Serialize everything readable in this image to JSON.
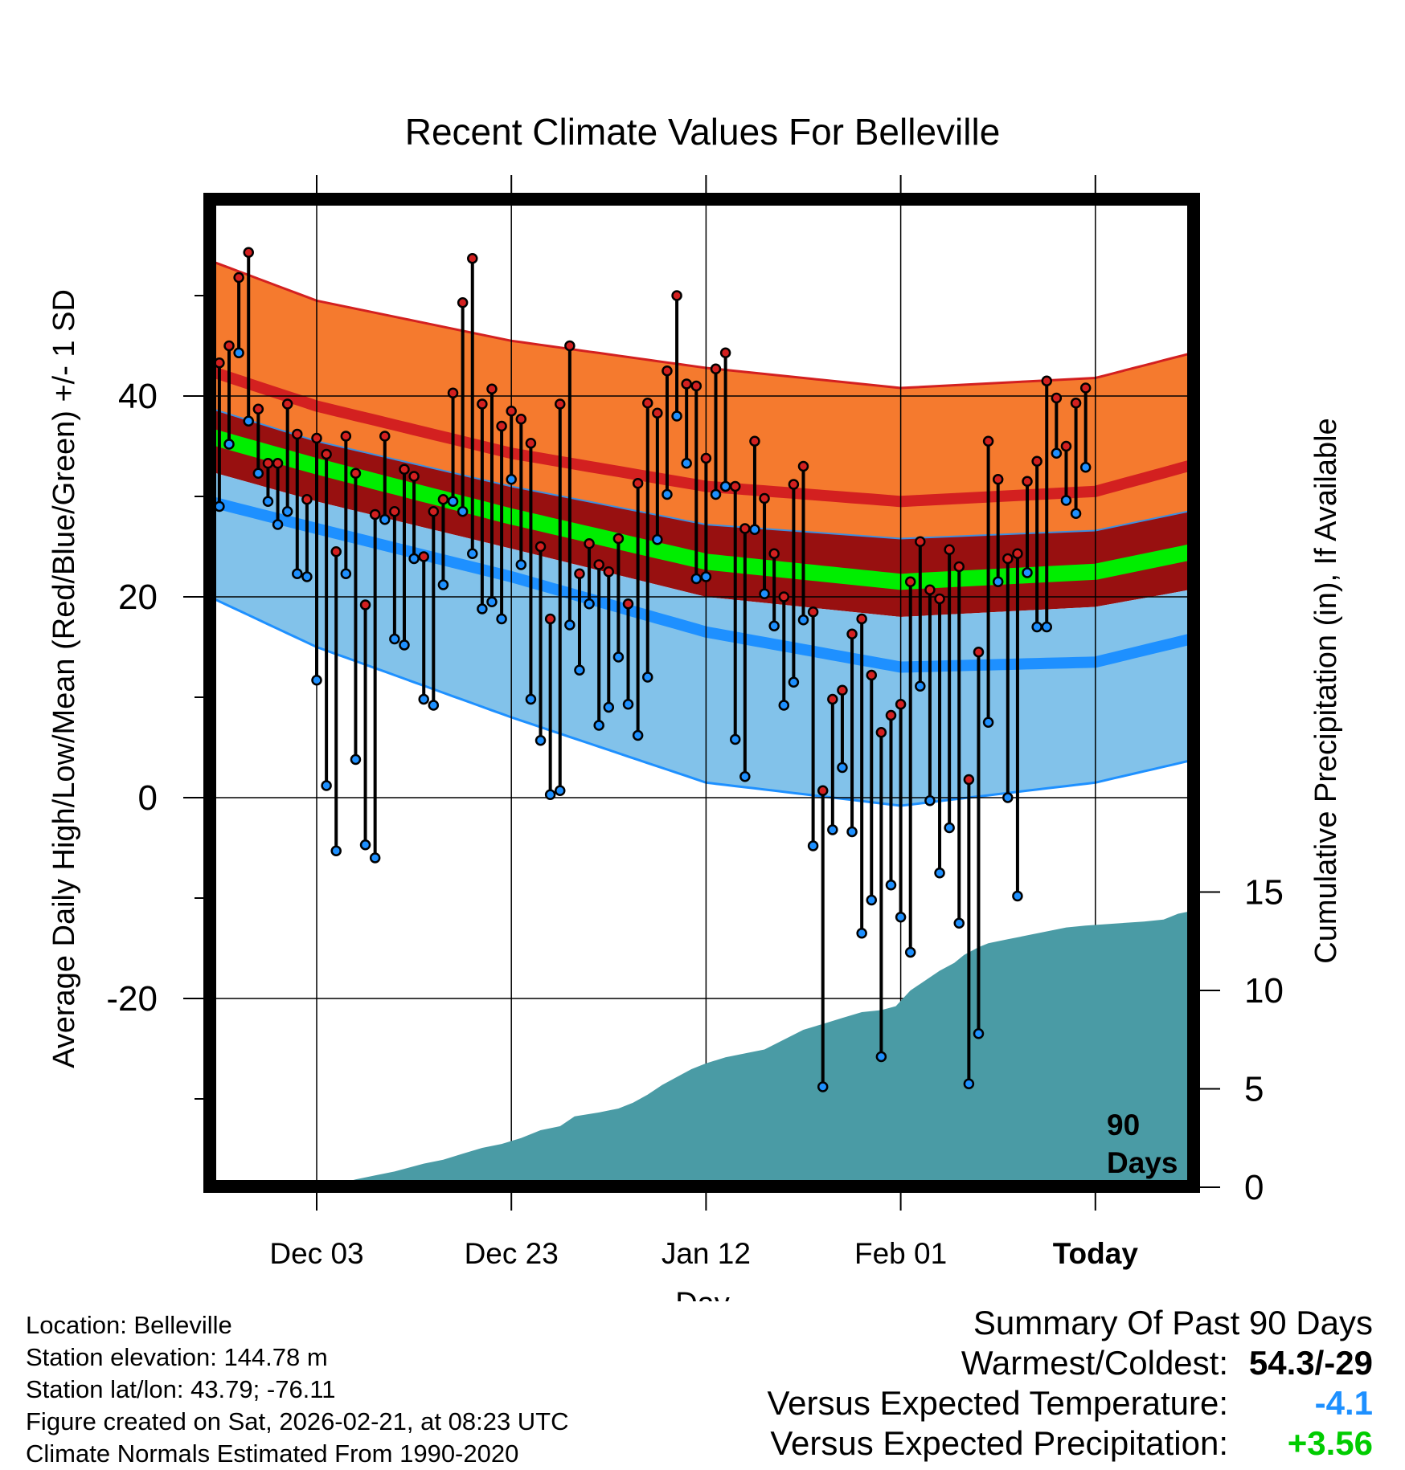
{
  "chart_data": {
    "type": "line",
    "title": "Recent Climate Values For Belleville",
    "xlabel": "Day",
    "ylabel_left": "Average Daily High/Low/Mean (Red/Blue/Green) +/- 1 SD",
    "ylabel_right": "Cumulative Precipitation (in), If Available",
    "x_tick_labels": [
      "Dec 03",
      "Dec 23",
      "Jan 12",
      "Feb 01",
      "Today"
    ],
    "y_left_ticks": [
      "40",
      "20",
      "0",
      "-20"
    ],
    "y_right_ticks": [
      "15",
      "10",
      "5",
      "0"
    ],
    "ylim_left": [
      -39,
      59
    ],
    "ylim_right": [
      0,
      29.5
    ],
    "today_marker": {
      "day_index": 90,
      "label_line1": "90",
      "label_line2": "Days"
    },
    "series_colors": {
      "high": "#d32020",
      "low": "#1e90ff",
      "mean": "#00ee00",
      "precip": "#4a9ba5",
      "high_band": "#f57a2e",
      "mid_band": "#981010",
      "low_band": "#82c2ea"
    },
    "normals": {
      "days": [
        -11,
        0,
        20,
        40,
        60,
        80,
        100
      ],
      "high_sd_upper": [
        53.5,
        49.5,
        45.5,
        42.8,
        40.8,
        41.8,
        46.8
      ],
      "high_mean": [
        42.5,
        39.0,
        34.3,
        31.0,
        29.5,
        30.5,
        35.8
      ],
      "mid_upper": [
        38.8,
        35.5,
        31.0,
        27.2,
        25.8,
        26.6,
        30.6
      ],
      "mean": [
        36.0,
        33.0,
        28.0,
        23.5,
        21.5,
        22.5,
        26.5
      ],
      "mid_lower": [
        32.5,
        29.5,
        24.8,
        20.0,
        18.0,
        19.0,
        22.5
      ],
      "low_mean": [
        29.5,
        26.8,
        22.0,
        16.5,
        13.0,
        13.5,
        18.2
      ],
      "low_sd_lower": [
        20.0,
        15.0,
        8.0,
        1.5,
        -0.8,
        1.5,
        6.0
      ]
    },
    "highs": [
      43.3,
      45,
      51.8,
      54.3,
      38.7,
      33.3,
      33.3,
      39.2,
      36.2,
      29.7,
      35.8,
      34.2,
      24.5,
      36,
      32.3,
      19.2,
      28.2,
      36,
      28.5,
      32.7,
      32,
      24,
      28.5,
      29.7,
      40.3,
      49.3,
      53.7,
      39.2,
      40.7,
      37,
      38.5,
      37.7,
      35.3,
      25,
      17.8,
      39.2,
      45,
      22.3,
      25.3,
      23.2,
      22.5,
      25.8,
      19.3,
      31.3,
      39.3,
      38.3,
      42.5,
      50,
      41.2,
      41,
      33.8,
      42.7,
      44.3,
      31,
      26.8,
      35.5,
      29.8,
      24.3,
      20,
      31.2,
      33,
      18.5,
      0.7,
      9.8,
      10.7,
      16.3,
      17.8,
      12.2,
      6.5,
      8.2,
      9.3,
      21.5,
      25.5,
      20.7,
      19.8,
      24.7,
      23,
      1.8,
      14.5,
      35.5,
      31.7,
      23.8,
      24.3,
      31.5,
      33.5,
      41.5,
      39.8,
      35,
      39.3,
      40.8
    ],
    "lows": [
      29,
      35.2,
      44.3,
      37.5,
      32.3,
      29.5,
      27.2,
      28.5,
      22.3,
      22,
      11.7,
      1.2,
      -5.3,
      22.3,
      3.8,
      -4.7,
      -6,
      27.7,
      15.8,
      15.2,
      23.8,
      9.8,
      9.2,
      21.2,
      29.5,
      28.5,
      24.3,
      18.8,
      19.5,
      17.8,
      31.7,
      23.2,
      9.8,
      5.7,
      0.3,
      0.7,
      17.2,
      12.7,
      19.3,
      7.2,
      9,
      14,
      9.3,
      6.2,
      12,
      25.7,
      30.2,
      38,
      33.3,
      21.8,
      22,
      30.2,
      31,
      5.8,
      2.1,
      26.7,
      20.3,
      17.1,
      9.2,
      11.5,
      17.7,
      -4.8,
      -28.8,
      -3.2,
      3,
      -3.4,
      -13.5,
      -10.2,
      -25.8,
      -8.7,
      -11.9,
      -15.4,
      11.1,
      -0.3,
      -7.5,
      -3,
      -12.5,
      -28.5,
      -23.5,
      7.5,
      21.5,
      0,
      -9.8,
      22.4,
      17,
      17,
      34.3,
      29.6,
      28.3,
      32.9
    ],
    "precip_steps": [
      [
        1.0,
        0
      ],
      [
        2.5,
        0.2
      ],
      [
        4,
        0.4
      ],
      [
        6,
        0.6
      ],
      [
        8,
        0.8
      ],
      [
        9.5,
        1.0
      ],
      [
        11,
        1.2
      ],
      [
        13,
        1.4
      ],
      [
        15,
        1.7
      ],
      [
        17,
        2.0
      ],
      [
        19,
        2.2
      ],
      [
        21,
        2.5
      ],
      [
        23,
        2.9
      ],
      [
        25,
        3.1
      ],
      [
        26.5,
        3.6
      ],
      [
        29,
        3.8
      ],
      [
        31,
        4.0
      ],
      [
        32.5,
        4.3
      ],
      [
        34,
        4.7
      ],
      [
        35.5,
        5.2
      ],
      [
        37,
        5.6
      ],
      [
        38.5,
        6.0
      ],
      [
        40,
        6.3
      ],
      [
        42,
        6.6
      ],
      [
        44,
        6.8
      ],
      [
        46,
        7.0
      ],
      [
        48,
        7.5
      ],
      [
        50,
        8.0
      ],
      [
        52,
        8.3
      ],
      [
        54,
        8.6
      ],
      [
        56,
        8.9
      ],
      [
        58,
        9.0
      ],
      [
        59.5,
        9.2
      ],
      [
        61,
        10.0
      ],
      [
        62.5,
        10.5
      ],
      [
        64,
        11.0
      ],
      [
        65.5,
        11.4
      ],
      [
        66.5,
        11.8
      ],
      [
        68,
        12.2
      ],
      [
        69,
        12.4
      ],
      [
        71,
        12.6
      ],
      [
        73,
        12.8
      ],
      [
        75,
        13.0
      ],
      [
        77,
        13.2
      ],
      [
        79,
        13.3
      ],
      [
        82,
        13.4
      ],
      [
        85,
        13.5
      ],
      [
        87,
        13.6
      ],
      [
        88.5,
        13.9
      ],
      [
        89.5,
        14.0
      ],
      [
        100,
        14.0
      ]
    ],
    "x_tick_days": [
      0,
      20,
      40,
      60,
      80
    ],
    "y_left_tick_values": [
      40,
      20,
      0,
      -20
    ],
    "y_right_tick_values": [
      15,
      10,
      5,
      0
    ]
  },
  "footer": {
    "location": "Location: Belleville",
    "elevation": "Station elevation: 144.78 m",
    "latlon": "Station lat/lon: 43.79; -76.11",
    "created": "Figure created on Sat, 2026-02-21, at 08:23 UTC",
    "normals": "Climate Normals Estimated From 1990-2020"
  },
  "summary": {
    "heading": "Summary Of Past 90 Days",
    "warmest_label": "Warmest/Coldest:",
    "warmest_value": "54.3/-29",
    "temp_label": "Versus Expected Temperature:",
    "temp_value": "-4.1",
    "temp_color": "#1e90ff",
    "precip_label": "Versus Expected Precipitation:",
    "precip_value": "+3.56",
    "precip_color": "#00cc00"
  }
}
